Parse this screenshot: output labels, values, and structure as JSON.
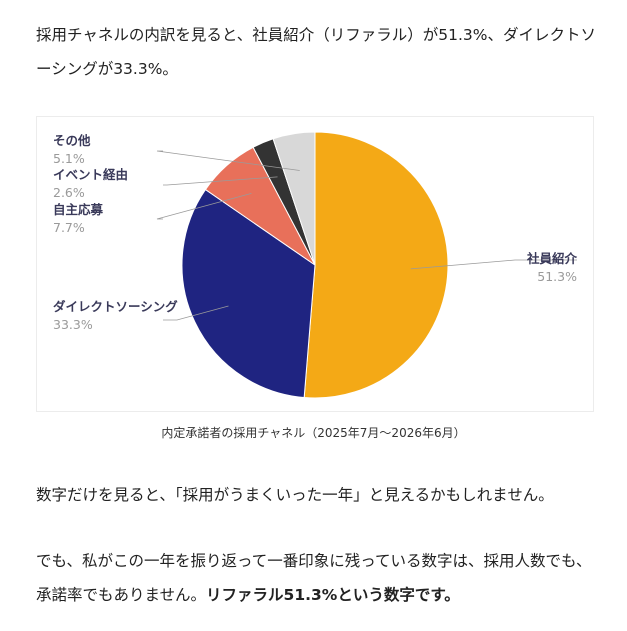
{
  "text": {
    "p1": "採用チャネルの内訳を見ると、社員紹介（リファラル）が51.3%、ダイレクトソーシングが33.3%。",
    "caption": "内定承諾者の採用チャネル（2025年7月〜2026年6月）",
    "p2": "数字だけを見ると、「採用がうまくいった一年」と見えるかもしれません。",
    "p3_plain": "でも、私がこの一年を振り返って一番印象に残っている数字は、採用人数でも、承諾率でもありません。",
    "p3_bold": "リファラル51.3%という数字です。"
  },
  "chart_data": {
    "type": "pie",
    "title": "",
    "slices": [
      {
        "label": "社員紹介",
        "value": 51.3,
        "display": "51.3%",
        "color": "#f4a916"
      },
      {
        "label": "ダイレクトソーシング",
        "value": 33.3,
        "display": "33.3%",
        "color": "#1f2481"
      },
      {
        "label": "自主応募",
        "value": 7.7,
        "display": "7.7%",
        "color": "#e8705a"
      },
      {
        "label": "イベント経由",
        "value": 2.6,
        "display": "2.6%",
        "color": "#333333"
      },
      {
        "label": "その他",
        "value": 5.1,
        "display": "5.1%",
        "color": "#d8d8d8"
      }
    ],
    "legend": "none"
  }
}
